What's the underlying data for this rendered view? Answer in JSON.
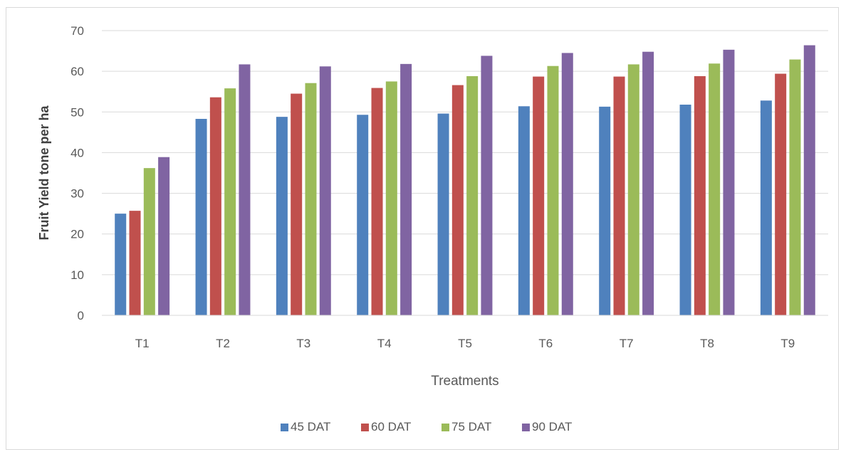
{
  "chart_data": {
    "type": "bar",
    "title": "",
    "xlabel": "Treatments",
    "ylabel": "Fruit Yield tone per ha",
    "ylim": [
      0,
      70
    ],
    "yticks": [
      0,
      10,
      20,
      30,
      40,
      50,
      60,
      70
    ],
    "grid": true,
    "legend_position": "bottom",
    "categories": [
      "T1",
      "T2",
      "T3",
      "T4",
      "T5",
      "T6",
      "T7",
      "T8",
      "T9"
    ],
    "series": [
      {
        "name": "45 DAT",
        "color": "#4f81bd",
        "values": [
          25.0,
          48.3,
          48.8,
          49.3,
          49.6,
          51.4,
          51.3,
          51.8,
          52.8
        ]
      },
      {
        "name": "60 DAT",
        "color": "#c0504d",
        "values": [
          25.7,
          53.6,
          54.5,
          55.9,
          56.6,
          58.7,
          58.7,
          58.8,
          59.4
        ]
      },
      {
        "name": "75 DAT",
        "color": "#9bbb59",
        "values": [
          36.2,
          55.8,
          57.1,
          57.5,
          58.8,
          61.3,
          61.7,
          61.9,
          62.9
        ]
      },
      {
        "name": "90 DAT",
        "color": "#8064a2",
        "values": [
          38.9,
          61.7,
          61.2,
          61.8,
          63.8,
          64.5,
          64.8,
          65.3,
          66.4
        ]
      }
    ]
  }
}
